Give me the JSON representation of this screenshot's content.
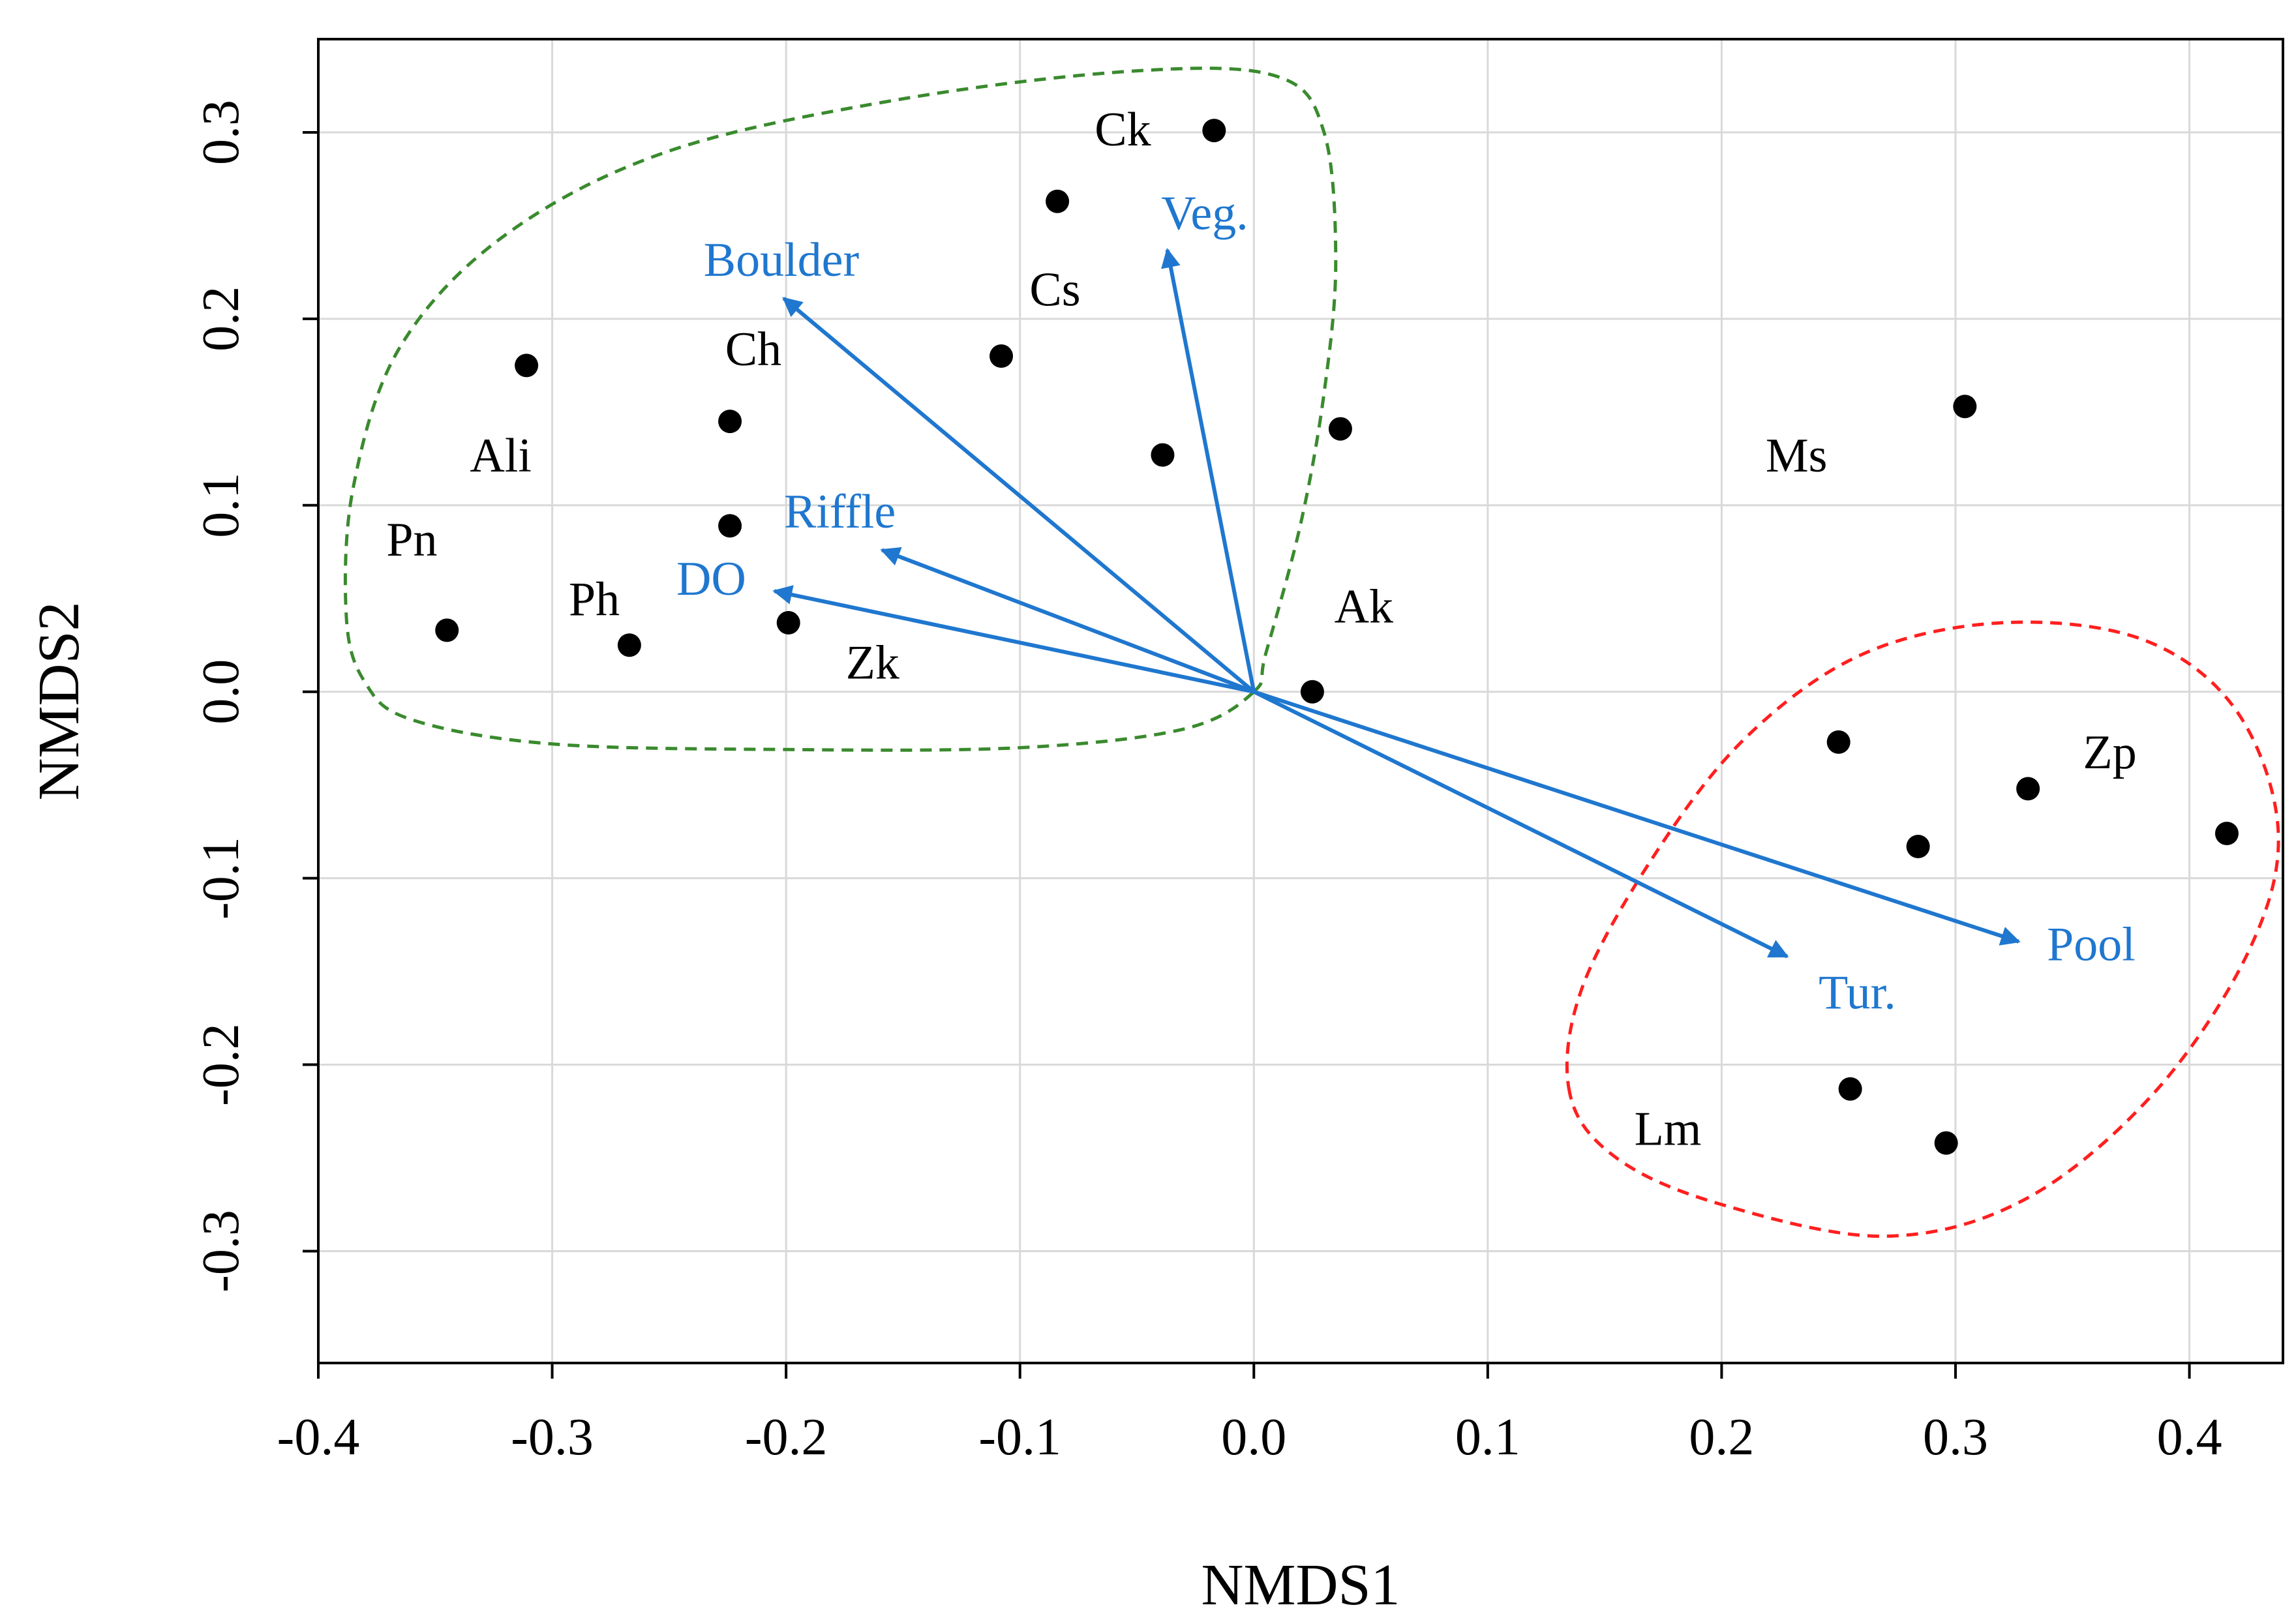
{
  "chart_data": {
    "type": "scatter",
    "subtype": "NMDS ordination biplot",
    "xlabel": "NMDS1",
    "ylabel": "NMDS2",
    "xlim": [
      -0.4,
      0.44
    ],
    "ylim": [
      -0.36,
      0.35
    ],
    "x_ticks": [
      {
        "value": -0.4,
        "label": "-0.4"
      },
      {
        "value": -0.3,
        "label": "-0.3"
      },
      {
        "value": -0.2,
        "label": "-0.2"
      },
      {
        "value": -0.1,
        "label": "-0.1"
      },
      {
        "value": 0.0,
        "label": "0.0"
      },
      {
        "value": 0.1,
        "label": "0.1"
      },
      {
        "value": 0.2,
        "label": "0.2"
      },
      {
        "value": 0.3,
        "label": "0.3"
      },
      {
        "value": 0.4,
        "label": "0.4"
      }
    ],
    "y_ticks": [
      {
        "value": -0.3,
        "label": "-0.3"
      },
      {
        "value": -0.2,
        "label": "-0.2"
      },
      {
        "value": -0.1,
        "label": "-0.1"
      },
      {
        "value": 0.0,
        "label": "0.0"
      },
      {
        "value": 0.1,
        "label": "0.1"
      },
      {
        "value": 0.2,
        "label": "0.2"
      },
      {
        "value": 0.3,
        "label": "0.3"
      }
    ],
    "grid": true,
    "site_points": [
      {
        "x": -0.017,
        "y": 0.301
      },
      {
        "x": -0.084,
        "y": 0.263
      },
      {
        "x": -0.108,
        "y": 0.18
      },
      {
        "x": -0.311,
        "y": 0.175
      },
      {
        "x": -0.224,
        "y": 0.145
      },
      {
        "x": -0.039,
        "y": 0.127
      },
      {
        "x": 0.037,
        "y": 0.141
      },
      {
        "x": -0.224,
        "y": 0.089
      },
      {
        "x": -0.199,
        "y": 0.037
      },
      {
        "x": -0.345,
        "y": 0.033
      },
      {
        "x": -0.267,
        "y": 0.025
      },
      {
        "x": 0.025,
        "y": 0.0
      },
      {
        "x": 0.304,
        "y": 0.153
      },
      {
        "x": 0.25,
        "y": -0.027
      },
      {
        "x": 0.331,
        "y": -0.052
      },
      {
        "x": 0.284,
        "y": -0.083
      },
      {
        "x": 0.416,
        "y": -0.076
      },
      {
        "x": 0.255,
        "y": -0.213
      },
      {
        "x": 0.296,
        "y": -0.242
      }
    ],
    "species_labels": [
      {
        "text": "Ck",
        "x": -0.056,
        "y": 0.299
      },
      {
        "text": "Cs",
        "x": -0.085,
        "y": 0.213
      },
      {
        "text": "Ch",
        "x": -0.214,
        "y": 0.181
      },
      {
        "text": "Ali",
        "x": -0.322,
        "y": 0.124
      },
      {
        "text": "Pn",
        "x": -0.36,
        "y": 0.079
      },
      {
        "text": "Ph",
        "x": -0.282,
        "y": 0.047
      },
      {
        "text": "Zk",
        "x": -0.163,
        "y": 0.013
      },
      {
        "text": "Ak",
        "x": 0.047,
        "y": 0.043
      },
      {
        "text": "Ms",
        "x": 0.232,
        "y": 0.124
      },
      {
        "text": "Zp",
        "x": 0.366,
        "y": -0.035
      },
      {
        "text": "Lm",
        "x": 0.177,
        "y": -0.237
      }
    ],
    "env_vectors": [
      {
        "name": "Veg.",
        "x": -0.037,
        "y": 0.237,
        "label_x": -0.021,
        "label_y": 0.254
      },
      {
        "name": "Boulder",
        "x": -0.201,
        "y": 0.211,
        "label_x": -0.202,
        "label_y": 0.229
      },
      {
        "name": "Riffle",
        "x": -0.159,
        "y": 0.076,
        "label_x": -0.177,
        "label_y": 0.094
      },
      {
        "name": "DO",
        "x": -0.205,
        "y": 0.054,
        "label_x": -0.232,
        "label_y": 0.058
      },
      {
        "name": "Tur.",
        "x": 0.228,
        "y": -0.142,
        "label_x": 0.258,
        "label_y": -0.164
      },
      {
        "name": "Pool",
        "x": 0.327,
        "y": -0.134,
        "label_x": 0.358,
        "label_y": -0.138
      }
    ],
    "group_hulls": [
      {
        "color": "#3a8a2e",
        "path": [
          [
            0.0,
            0.0
          ],
          [
            0.005,
            0.02
          ],
          [
            0.02,
            0.09
          ],
          [
            0.03,
            0.16
          ],
          [
            0.035,
            0.23
          ],
          [
            0.03,
            0.3
          ],
          [
            0.01,
            0.33
          ],
          [
            -0.05,
            0.333
          ],
          [
            -0.15,
            0.318
          ],
          [
            -0.25,
            0.29
          ],
          [
            -0.32,
            0.245
          ],
          [
            -0.365,
            0.185
          ],
          [
            -0.385,
            0.11
          ],
          [
            -0.388,
            0.04
          ],
          [
            -0.38,
            0.005
          ],
          [
            -0.36,
            -0.015
          ],
          [
            -0.3,
            -0.028
          ],
          [
            -0.2,
            -0.031
          ],
          [
            -0.1,
            -0.03
          ],
          [
            -0.03,
            -0.02
          ]
        ]
      },
      {
        "color": "#ff1f1f",
        "path": [
          [
            0.135,
            -0.215
          ],
          [
            0.14,
            -0.16
          ],
          [
            0.17,
            -0.09
          ],
          [
            0.21,
            -0.025
          ],
          [
            0.26,
            0.02
          ],
          [
            0.32,
            0.037
          ],
          [
            0.38,
            0.028
          ],
          [
            0.42,
            -0.01
          ],
          [
            0.438,
            -0.075
          ],
          [
            0.425,
            -0.14
          ],
          [
            0.385,
            -0.215
          ],
          [
            0.33,
            -0.272
          ],
          [
            0.27,
            -0.292
          ],
          [
            0.2,
            -0.275
          ],
          [
            0.155,
            -0.25
          ]
        ]
      }
    ],
    "colors": {
      "points": "#000000",
      "vectors": "#1f77cf",
      "grid": "#d9d9d9",
      "frame": "#000000"
    }
  }
}
